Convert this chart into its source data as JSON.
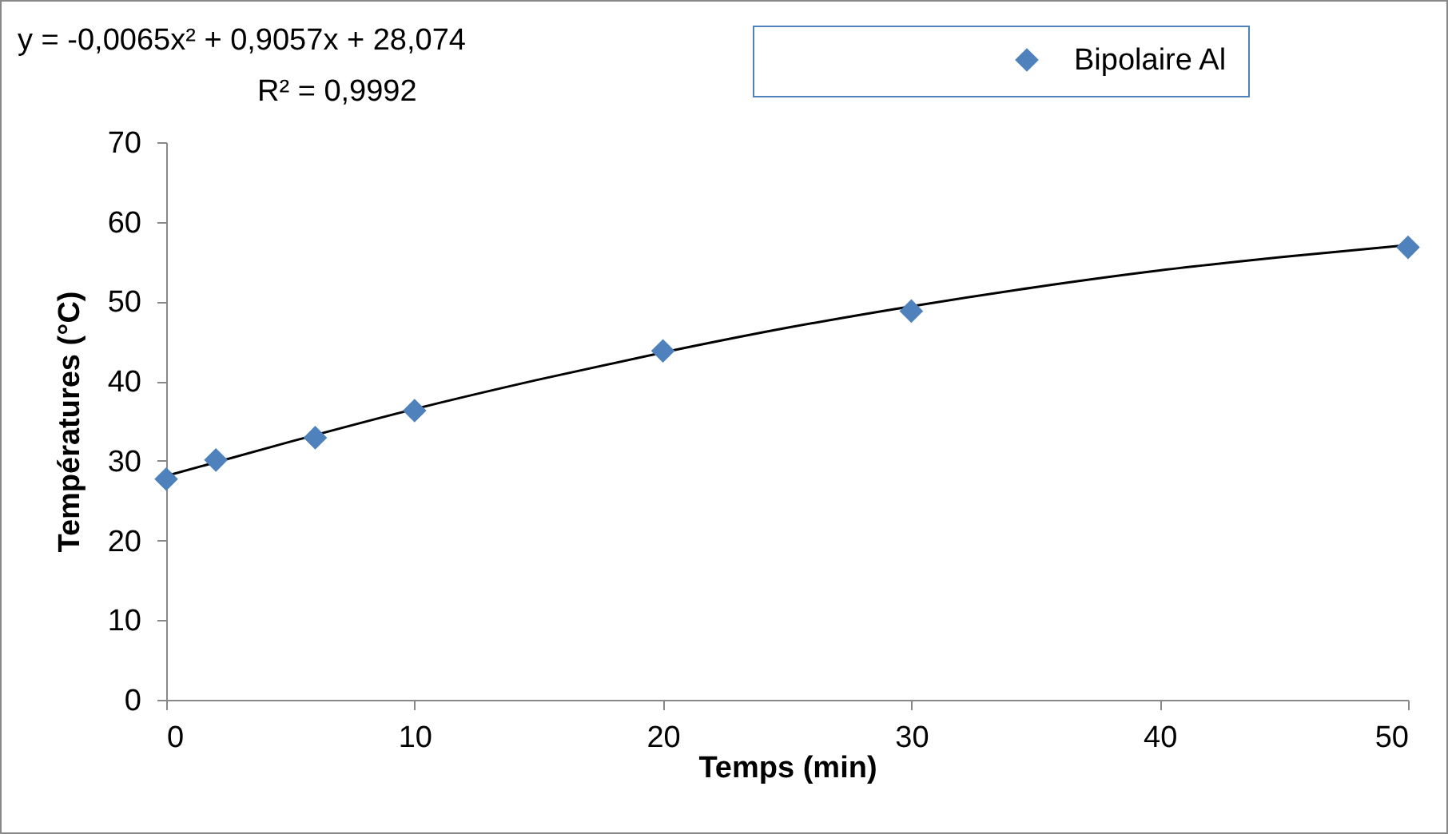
{
  "chart_data": {
    "type": "scatter",
    "xlabel": "Temps (min)",
    "ylabel": "Températures (°C)",
    "annotations": [
      "y = -0,0065x² + 0,9057x + 28,074",
      "R² = 0,9992"
    ],
    "series": [
      {
        "name": "Bipolaire Al",
        "color": "#4f81bd",
        "marker": "diamond",
        "x": [
          0,
          2,
          6,
          10,
          20,
          30,
          50
        ],
        "values": [
          27.7,
          30.1,
          32.9,
          36.3,
          43.8,
          48.8,
          56.8
        ]
      },
      {
        "type": "line",
        "color": "#000000",
        "marker": "none",
        "line_style": "solid",
        "x": [
          0,
          5,
          10,
          15,
          20,
          25,
          30,
          35,
          40,
          45,
          50
        ],
        "values": [
          28.1,
          32.4,
          36.5,
          40.2,
          43.6,
          46.7,
          49.4,
          51.8,
          53.9,
          55.6,
          57.1
        ]
      }
    ],
    "xlim": [
      0,
      50
    ],
    "xticks": [
      0,
      10,
      20,
      30,
      40,
      50
    ],
    "ylim": [
      0,
      70
    ],
    "yticks": [
      0,
      10,
      20,
      30,
      40,
      50,
      60,
      70
    ],
    "grid": false,
    "legend": "top right"
  }
}
